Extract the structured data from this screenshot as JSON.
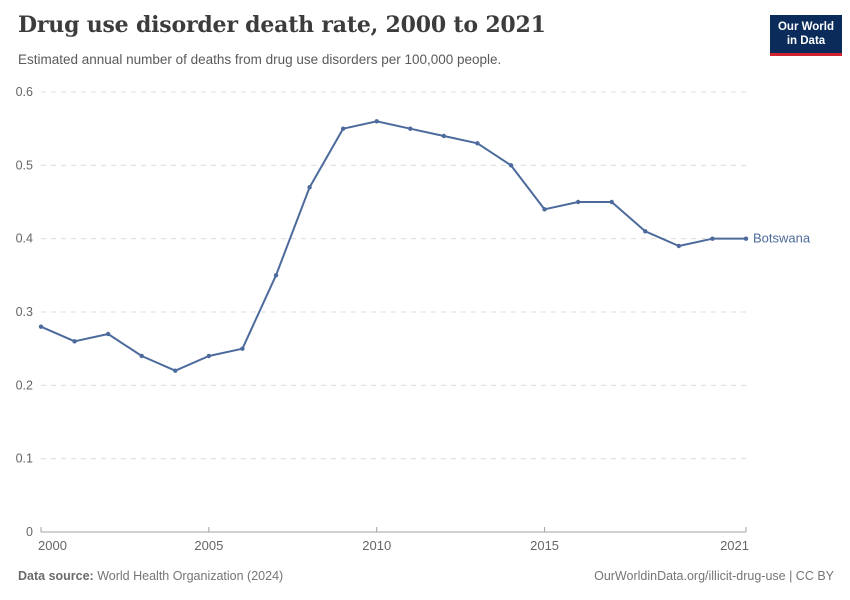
{
  "header": {
    "title": "Drug use disorder death rate, 2000 to 2021",
    "subtitle": "Estimated annual number of deaths from drug use disorders per 100,000 people.",
    "logo": {
      "line1": "Our World",
      "line2": "in Data"
    }
  },
  "chart_data": {
    "type": "line",
    "title": "Drug use disorder death rate, 2000 to 2021",
    "xlabel": "",
    "ylabel": "",
    "x": [
      2000,
      2001,
      2002,
      2003,
      2004,
      2005,
      2006,
      2007,
      2008,
      2009,
      2010,
      2011,
      2012,
      2013,
      2014,
      2015,
      2016,
      2017,
      2018,
      2019,
      2020,
      2021
    ],
    "series": [
      {
        "name": "Botswana",
        "color": "#4C6A9C",
        "values": [
          0.28,
          0.26,
          0.27,
          0.24,
          0.22,
          0.24,
          0.25,
          0.35,
          0.47,
          0.55,
          0.56,
          0.55,
          0.54,
          0.53,
          0.5,
          0.44,
          0.45,
          0.45,
          0.41,
          0.39,
          0.4,
          0.4
        ]
      }
    ],
    "xlim": [
      2000,
      2021
    ],
    "ylim": [
      0,
      0.6
    ],
    "x_ticks": [
      2000,
      2005,
      2010,
      2015,
      2021
    ],
    "y_ticks": [
      0,
      0.1,
      0.2,
      0.3,
      0.4,
      0.5,
      0.6
    ],
    "grid": "horizontal-dashed",
    "legend_position": "end-of-line",
    "end_label": "Botswana"
  },
  "footer": {
    "source_label": "Data source:",
    "source_value": "World Health Organization (2024)",
    "license": "OurWorldinData.org/illicit-drug-use | CC BY"
  },
  "colors": {
    "line": "#4C6A9C",
    "grid": "#dcdcdc",
    "axis": "#a3a3a3",
    "tick_text": "#666666",
    "title": "#3c3c3c",
    "subtitle": "#5a5a5a",
    "footer": "#757575",
    "logo_bg": "#0b2b5b",
    "logo_bar": "#cf2430"
  }
}
